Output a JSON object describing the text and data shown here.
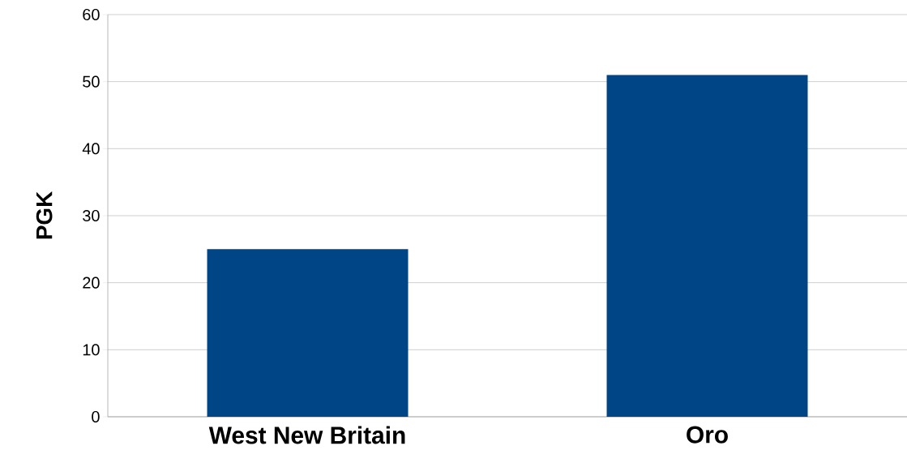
{
  "chart_data": {
    "type": "bar",
    "ylabel": "PGK",
    "categories": [
      "West New Britain",
      "Oro"
    ],
    "values": [
      25,
      51
    ],
    "color": "#004586",
    "ylim": [
      0,
      60
    ],
    "yticks": [
      0,
      10,
      20,
      30,
      40,
      50,
      60
    ],
    "grid": "y"
  }
}
